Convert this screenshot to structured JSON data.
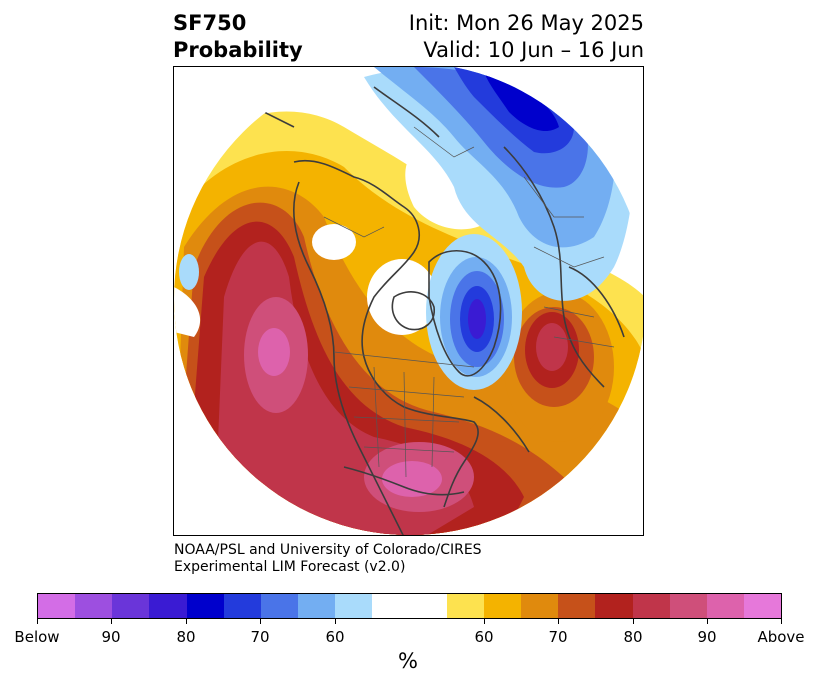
{
  "title": {
    "left_line1": "SF750",
    "left_line2": "Probability",
    "right_line1": "Init: Mon 26 May 2025",
    "right_line2": "Valid: 10 Jun – 16 Jun"
  },
  "credit": {
    "line1": "NOAA/PSL and University of Colorado/CIRES",
    "line2": "Experimental LIM Forecast (v2.0)"
  },
  "colorbar": {
    "unit": "%",
    "colors": [
      "#d36de6",
      "#9d4fe0",
      "#6a35d9",
      "#3a1bd3",
      "#0000cc",
      "#233bdc",
      "#4a74e8",
      "#73aef2",
      "#a9dbfb",
      "#ffffff",
      "#ffffff",
      "#fde24f",
      "#f4b300",
      "#e08a0d",
      "#c6511a",
      "#b2221e",
      "#c0354a",
      "#cf4f7a",
      "#dd62ac",
      "#e678da"
    ],
    "labels": [
      "Below",
      "90",
      "80",
      "70",
      "60",
      "60",
      "70",
      "80",
      "90",
      "Above"
    ]
  },
  "legend_colors": {
    "below": "#0000cc",
    "above": "#b2221e"
  }
}
